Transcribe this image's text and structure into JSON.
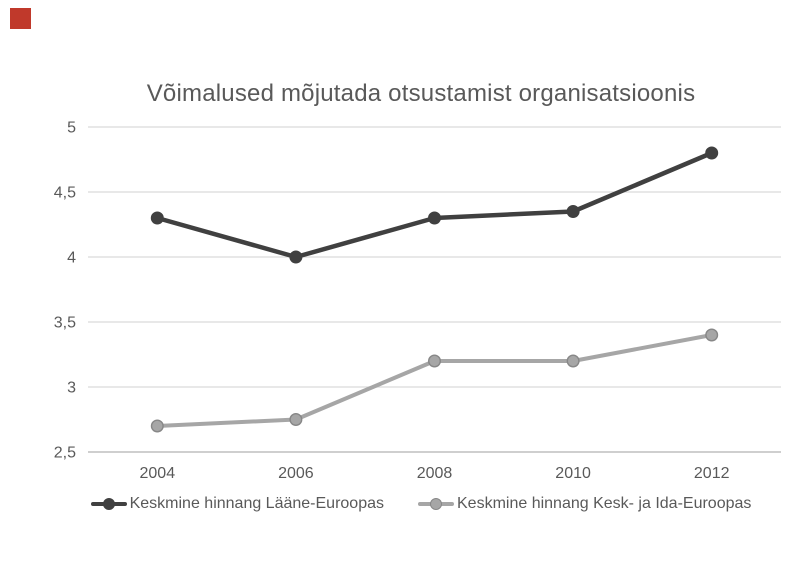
{
  "page": {
    "background": "#ffffff"
  },
  "overlay_marker": {
    "color": "#c0392b"
  },
  "chart_data": {
    "type": "line",
    "title": "Võimalused mõjutada otsustamist organisatsioonis",
    "x_labels": [
      "2004",
      "2006",
      "2008",
      "2010",
      "2012"
    ],
    "y_ticks": [
      "5",
      "4,5",
      "4",
      "3,5",
      "3",
      "2,5"
    ],
    "y_tick_values": [
      5,
      4.5,
      4,
      3.5,
      3,
      2.5
    ],
    "ylim": [
      2.5,
      5
    ],
    "grid": "horizontal",
    "legend_position": "bottom",
    "series": [
      {
        "name": "Keskmine hinnang Lääne-Euroopas",
        "values": [
          4.3,
          4.0,
          4.3,
          4.35,
          4.8
        ],
        "color": "#404040",
        "marker": "circle",
        "marker_border": "#404040",
        "line_width": 4.5
      },
      {
        "name": "Keskmine hinnang Kesk- ja Ida-Euroopas",
        "values": [
          2.7,
          2.75,
          3.2,
          3.2,
          3.4
        ],
        "color": "#a6a6a6",
        "marker": "circle",
        "marker_border": "#878787",
        "line_width": 4
      }
    ],
    "colors": {
      "gridline": "#d9d9d9",
      "axis_line": "#bfbfbf",
      "text": "#595959"
    }
  }
}
